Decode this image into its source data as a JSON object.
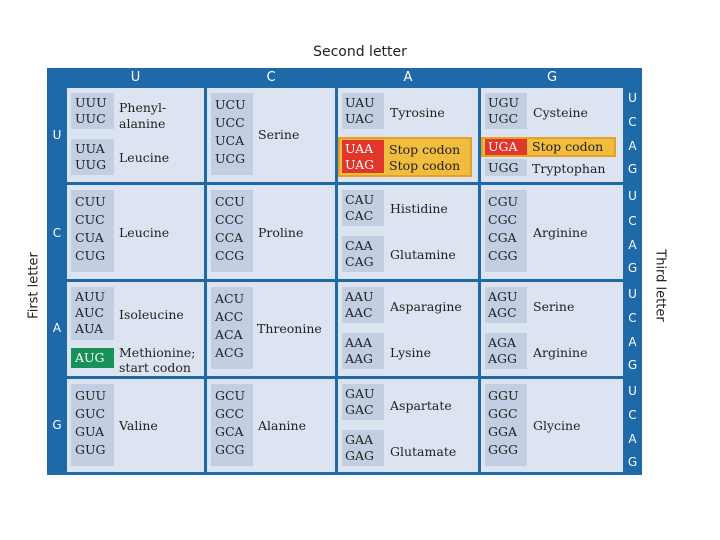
{
  "header": {
    "second_letter": "Second letter"
  },
  "side_labels": {
    "first_letter": "First letter",
    "third_letter": "Third letter"
  },
  "columns": [
    "U",
    "C",
    "A",
    "G"
  ],
  "rows": [
    "U",
    "C",
    "A",
    "G"
  ],
  "third_letters": [
    "U",
    "C",
    "A",
    "G",
    "U",
    "C",
    "A",
    "G",
    "U",
    "C",
    "A",
    "G",
    "U",
    "C",
    "A",
    "G"
  ],
  "cells": {
    "UU": {
      "groups": [
        {
          "codons": [
            "UUU",
            "UUC"
          ],
          "aa": [
            "Phenyl-",
            "alanine"
          ]
        },
        {
          "codons": [
            "UUA",
            "UUG"
          ],
          "aa": [
            "Leucine"
          ]
        }
      ]
    },
    "UC": {
      "groups": [
        {
          "codons": [
            "UCU",
            "UCC",
            "UCA",
            "UCG"
          ],
          "aa": [
            "Serine"
          ]
        }
      ]
    },
    "UA": {
      "groups": [
        {
          "codons": [
            "UAU",
            "UAC"
          ],
          "aa": [
            "Tyrosine"
          ]
        },
        {
          "codons": [
            "UAA",
            "UAG"
          ],
          "aa": [
            "Stop codon",
            "Stop codon"
          ]
        }
      ]
    },
    "UG": {
      "groups": [
        {
          "codons": [
            "UGU",
            "UGC"
          ],
          "aa": [
            "Cysteine"
          ]
        },
        {
          "codons": [
            "UGA"
          ],
          "aa": [
            "Stop codon"
          ]
        },
        {
          "codons": [
            "UGG"
          ],
          "aa": [
            "Tryptophan"
          ]
        }
      ]
    },
    "CU": {
      "groups": [
        {
          "codons": [
            "CUU",
            "CUC",
            "CUA",
            "CUG"
          ],
          "aa": [
            "Leucine"
          ]
        }
      ]
    },
    "CC": {
      "groups": [
        {
          "codons": [
            "CCU",
            "CCC",
            "CCA",
            "CCG"
          ],
          "aa": [
            "Proline"
          ]
        }
      ]
    },
    "CA": {
      "groups": [
        {
          "codons": [
            "CAU",
            "CAC"
          ],
          "aa": [
            "Histidine"
          ]
        },
        {
          "codons": [
            "CAA",
            "CAG"
          ],
          "aa": [
            "Glutamine"
          ]
        }
      ]
    },
    "CG": {
      "groups": [
        {
          "codons": [
            "CGU",
            "CGC",
            "CGA",
            "CGG"
          ],
          "aa": [
            "Arginine"
          ]
        }
      ]
    },
    "AU": {
      "groups": [
        {
          "codons": [
            "AUU",
            "AUC",
            "AUA"
          ],
          "aa": [
            "Isoleucine"
          ]
        },
        {
          "codons": [
            "AUG"
          ],
          "aa": [
            "Methionine;",
            "start codon"
          ]
        }
      ]
    },
    "AC": {
      "groups": [
        {
          "codons": [
            "ACU",
            "ACC",
            "ACA",
            "ACG"
          ],
          "aa": [
            "Threonine"
          ]
        }
      ]
    },
    "AA": {
      "groups": [
        {
          "codons": [
            "AAU",
            "AAC"
          ],
          "aa": [
            "Asparagine"
          ]
        },
        {
          "codons": [
            "AAA",
            "AAG"
          ],
          "aa": [
            "Lysine"
          ]
        }
      ]
    },
    "AG": {
      "groups": [
        {
          "codons": [
            "AGU",
            "AGC"
          ],
          "aa": [
            "Serine"
          ]
        },
        {
          "codons": [
            "AGA",
            "AGG"
          ],
          "aa": [
            "Arginine"
          ]
        }
      ]
    },
    "GU": {
      "groups": [
        {
          "codons": [
            "GUU",
            "GUC",
            "GUA",
            "GUG"
          ],
          "aa": [
            "Valine"
          ]
        }
      ]
    },
    "GC": {
      "groups": [
        {
          "codons": [
            "GCU",
            "GCC",
            "GCA",
            "GCG"
          ],
          "aa": [
            "Alanine"
          ]
        }
      ]
    },
    "GA": {
      "groups": [
        {
          "codons": [
            "GAU",
            "GAC"
          ],
          "aa": [
            "Aspartate"
          ]
        },
        {
          "codons": [
            "GAA",
            "GAG"
          ],
          "aa": [
            "Glutamate"
          ]
        }
      ]
    },
    "GG": {
      "groups": [
        {
          "codons": [
            "GGU",
            "GGC",
            "GGA",
            "GGG"
          ],
          "aa": [
            "Glycine"
          ]
        }
      ]
    }
  },
  "colors": {
    "table_blue": "#1e6aa8",
    "cell_bg": "#dbe4f0",
    "codon_bg": "#c2cfe2",
    "stop_highlight": "#f0bd3e",
    "stop_red": "#e0362b",
    "start_green": "#19915a"
  }
}
